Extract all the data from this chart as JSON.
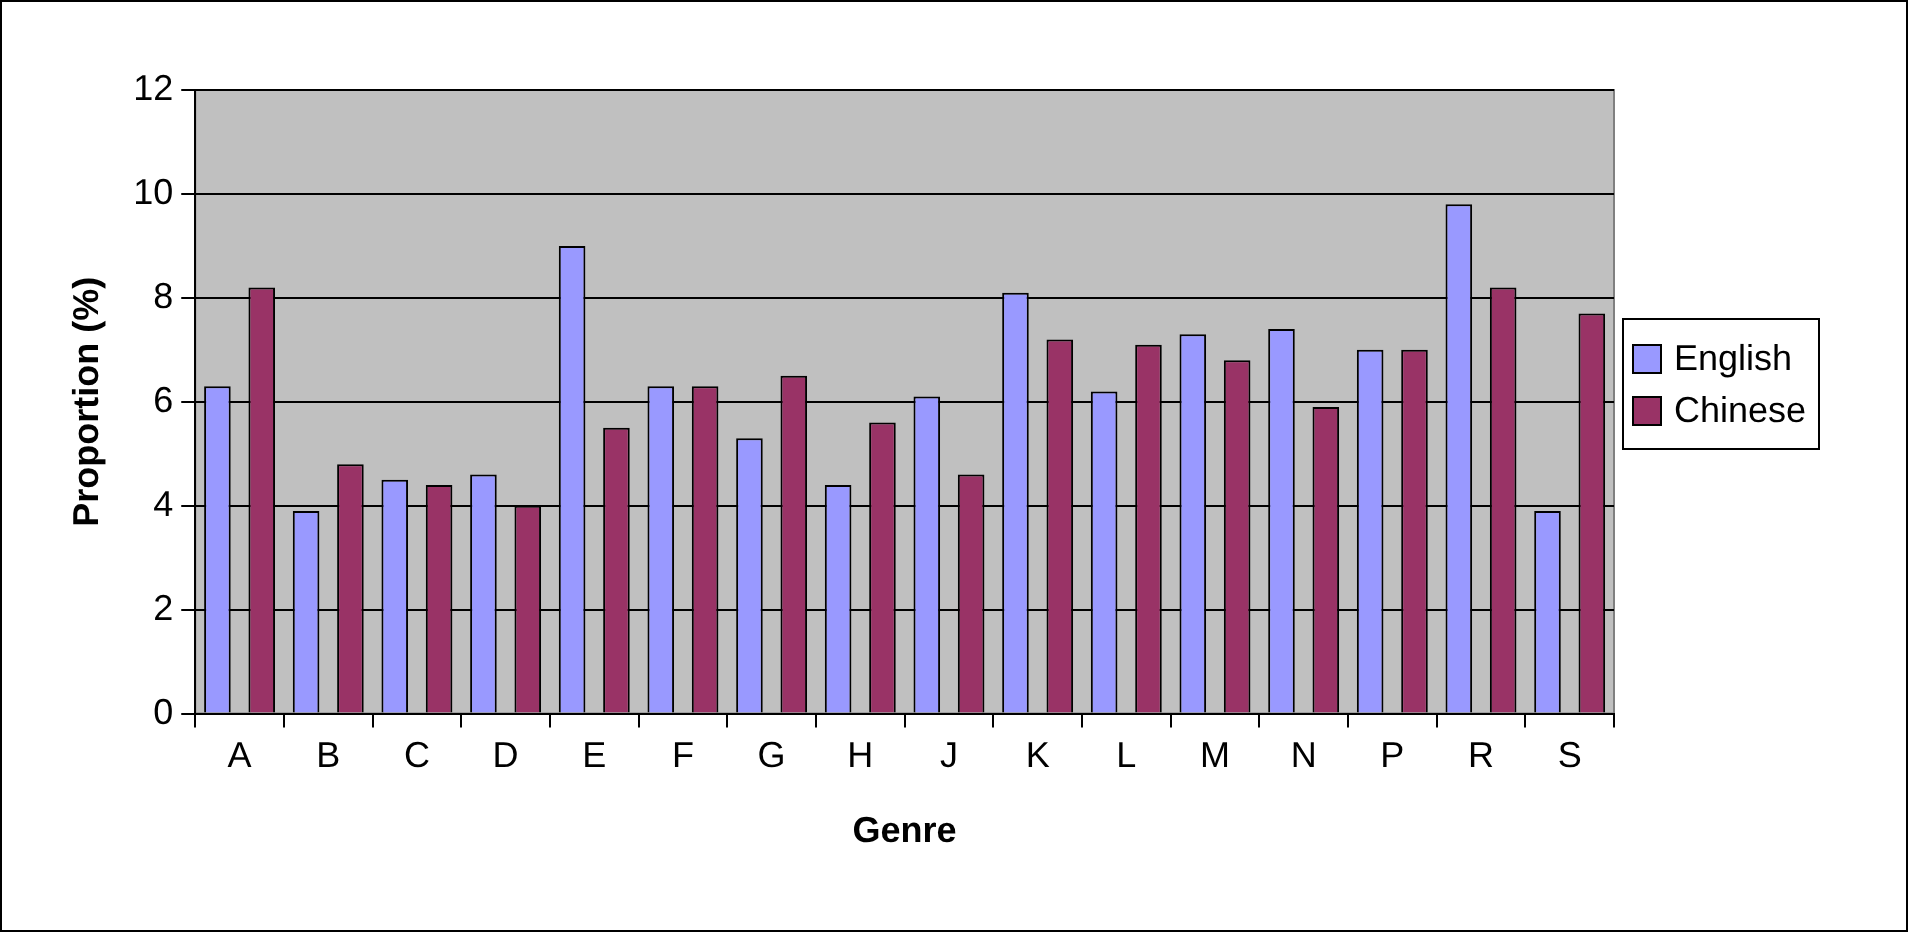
{
  "chart_data": {
    "type": "bar",
    "xlabel": "Genre",
    "ylabel": "Proportion (%)",
    "categories": [
      "A",
      "B",
      "C",
      "D",
      "E",
      "F",
      "G",
      "H",
      "J",
      "K",
      "L",
      "M",
      "N",
      "P",
      "R",
      "S"
    ],
    "series": [
      {
        "name": "English",
        "color": "#9999ff",
        "values": [
          6.3,
          3.9,
          4.5,
          4.6,
          9.0,
          6.3,
          5.3,
          4.4,
          6.1,
          8.1,
          6.2,
          7.3,
          7.4,
          7.0,
          9.8,
          3.9
        ]
      },
      {
        "name": "Chinese",
        "color": "#993366",
        "values": [
          8.2,
          4.8,
          4.4,
          4.0,
          5.5,
          6.3,
          6.5,
          5.6,
          4.6,
          7.2,
          7.1,
          6.8,
          5.9,
          7.0,
          8.2,
          7.7
        ]
      }
    ],
    "ylim": [
      0,
      12
    ],
    "yticks": [
      0,
      2,
      4,
      6,
      8,
      10,
      12
    ],
    "grid": "y",
    "legend": "right"
  }
}
